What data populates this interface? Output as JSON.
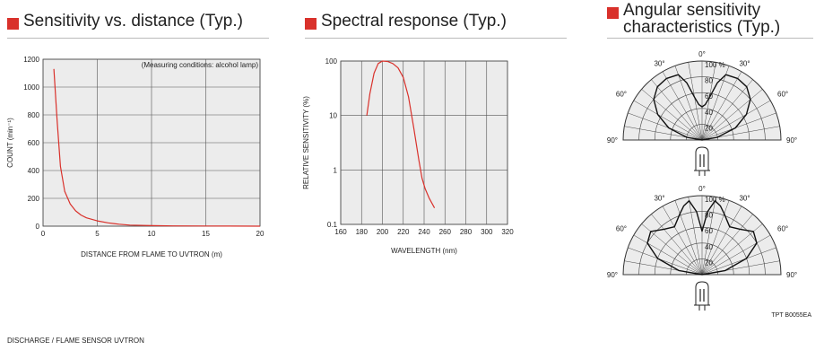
{
  "titles": {
    "sensitivity": "Sensitivity vs. distance (Typ.)",
    "spectral": "Spectral response (Typ.)",
    "angular_line1": "Angular sensitivity",
    "angular_line2": "characteristics (Typ.)"
  },
  "footer": "DISCHARGE / FLAME SENSOR UVTRON",
  "doc_code": "TPT B0055EA",
  "colors": {
    "accent": "#d9312b",
    "curve": "#d9312b",
    "plot_bg": "#ececec",
    "grid": "#555555"
  },
  "chart_data": [
    {
      "type": "line",
      "title": "Sensitivity vs. distance (Typ.)",
      "annotation": "(Measuring conditions: alcohol lamp)",
      "xlabel": "DISTANCE FROM FLAME TO UVTRON (m)",
      "ylabel": "COUNT (min⁻¹)",
      "xlim": [
        0,
        20
      ],
      "ylim": [
        0,
        1200
      ],
      "xticks": [
        0,
        5,
        10,
        15,
        20
      ],
      "yticks": [
        0,
        200,
        400,
        600,
        800,
        1000,
        1200
      ],
      "grid": true,
      "series": [
        {
          "x": [
            1.0,
            1.3,
            1.6,
            2.0,
            2.5,
            3.0,
            3.5,
            4.0,
            5.0,
            6.0,
            7.0,
            8.0,
            10.0,
            12.0,
            15.0,
            20.0
          ],
          "y": [
            1130,
            760,
            430,
            250,
            160,
            110,
            80,
            60,
            38,
            24,
            14,
            8,
            4,
            2,
            1,
            0
          ]
        }
      ]
    },
    {
      "type": "line",
      "title": "Spectral response (Typ.)",
      "xlabel": "WAVELENGTH (nm)",
      "ylabel": "RELATIVE SENSITIVITY (%)",
      "xlim": [
        160,
        320
      ],
      "ylim": [
        0.1,
        100
      ],
      "yscale": "log",
      "xticks": [
        160,
        180,
        200,
        220,
        240,
        260,
        280,
        300,
        320
      ],
      "yticks": [
        0.1,
        1,
        10,
        100
      ],
      "ytick_labels": [
        "0.1",
        "1",
        "10",
        "100"
      ],
      "grid": true,
      "series": [
        {
          "x": [
            185,
            188,
            192,
            196,
            200,
            205,
            210,
            215,
            220,
            225,
            230,
            235,
            238,
            241,
            245,
            250
          ],
          "y": [
            10,
            25,
            60,
            90,
            100,
            98,
            90,
            75,
            50,
            22,
            6,
            1.5,
            0.7,
            0.45,
            0.3,
            0.2
          ]
        }
      ]
    },
    {
      "type": "polar",
      "title": "Angular sensitivity characteristics (Typ.)",
      "angle_labels": [
        "0°",
        "30°",
        "30°",
        "60°",
        "60°",
        "90°",
        "90°"
      ],
      "radial_labels": [
        "100 %",
        "80",
        "60",
        "40",
        "20"
      ],
      "charts": [
        {
          "angles": [
            -90,
            -80,
            -70,
            -60,
            -50,
            -40,
            -30,
            -20,
            -15,
            -10,
            -5,
            0,
            5,
            10,
            15,
            20,
            30,
            40,
            50,
            60,
            70,
            80,
            90
          ],
          "r": [
            0,
            20,
            45,
            65,
            80,
            88,
            90,
            88,
            75,
            55,
            45,
            42,
            45,
            55,
            75,
            88,
            90,
            88,
            80,
            65,
            45,
            20,
            0
          ]
        },
        {
          "angles": [
            -90,
            -80,
            -70,
            -60,
            -50,
            -40,
            -30,
            -20,
            -15,
            -10,
            -5,
            0,
            5,
            10,
            15,
            20,
            30,
            40,
            50,
            60,
            70,
            80,
            90
          ],
          "r": [
            0,
            30,
            60,
            80,
            85,
            75,
            70,
            82,
            90,
            95,
            80,
            55,
            80,
            95,
            90,
            82,
            70,
            75,
            85,
            80,
            60,
            30,
            0
          ]
        }
      ]
    }
  ]
}
